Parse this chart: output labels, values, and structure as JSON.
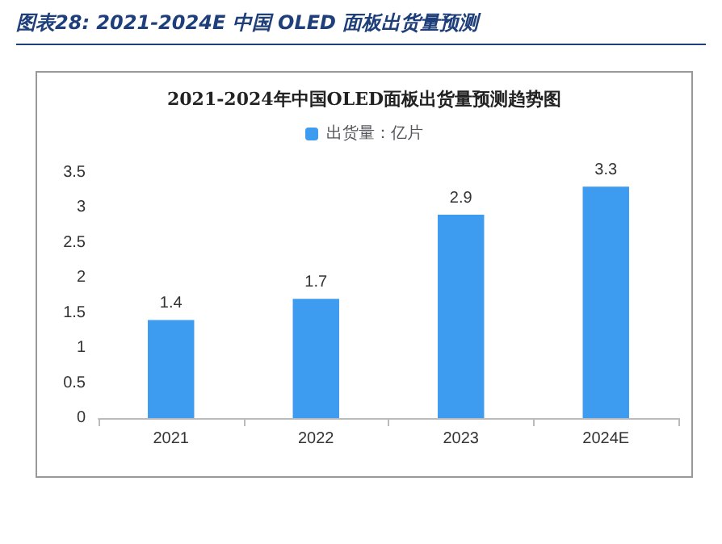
{
  "chart_data": {
    "type": "bar",
    "title": "图表28: 2021-2024E 中国 OLED 面板出货量预测",
    "subtitle": "2021-2024年中国OLED面板出货量预测趋势图",
    "categories": [
      "2021",
      "2022",
      "2023",
      "2024E"
    ],
    "series": [
      {
        "name": "出货量：亿片",
        "color": "#3d9bf0",
        "values": [
          1.4,
          1.7,
          2.9,
          3.3
        ]
      }
    ],
    "ylim": [
      0,
      3.5
    ],
    "yticks": [
      0,
      0.5,
      1,
      1.5,
      2,
      2.5,
      3,
      3.5
    ],
    "grid": false,
    "legend": "top",
    "data_labels": true
  }
}
